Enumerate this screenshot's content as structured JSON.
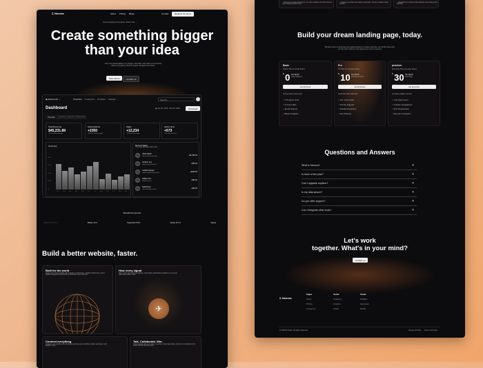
{
  "colors": {
    "background": "#f0b080",
    "page": "#0c0b0d",
    "accent": "#b8703a"
  },
  "left": {
    "nav": {
      "logo": "Nexora",
      "links": [
        "About",
        "Pricing",
        "Blogs"
      ],
      "contact": "Contact",
      "cta": "Request for demo"
    },
    "announcement": "Now accepting new projects. Read more →",
    "hero": {
      "line1": "Create something bigger",
      "line2": "than your idea",
      "subtitle": "All-in-one SaaS platform to manage, automate, and scale your business without complexity. Built for speed, designed for results.",
      "primary": "More About",
      "secondary": "Contact us"
    },
    "dashboard": {
      "team": "Alicia Koch",
      "nav": [
        "Overview",
        "Customers",
        "Products",
        "Settings"
      ],
      "search": "Search...",
      "title": "Dashboard",
      "date": "Jan 20, 2023 - Feb 09, 2023",
      "download": "Download",
      "tabs": [
        "Overview",
        "Analytics",
        "Reports",
        "Notifications"
      ],
      "stats": [
        {
          "label": "Total Revenue",
          "value": "$45,231.89",
          "note": "+20.1% from last month"
        },
        {
          "label": "Subscriptions",
          "value": "+2350",
          "note": "+180.1% from last month"
        },
        {
          "label": "Sales",
          "value": "+12,234",
          "note": "+19% from last month"
        },
        {
          "label": "Active Now",
          "value": "+573",
          "note": "+201 since last hour"
        }
      ],
      "overview_title": "Overview",
      "chart_data": {
        "type": "bar",
        "categories": [
          "Jan",
          "Feb",
          "Mar",
          "Apr",
          "May",
          "Jun",
          "Jul",
          "Aug",
          "Sep",
          "Oct",
          "Nov",
          "Dec"
        ],
        "values": [
          4820,
          3500,
          4140,
          2930,
          3390,
          4460,
          5210,
          2000,
          3040,
          1790,
          2430,
          2890
        ],
        "ylim": [
          0,
          6000
        ],
        "yticks": [
          "$0",
          "$1500",
          "$3000",
          "$4500",
          "$6000"
        ]
      },
      "recent": {
        "title": "Recent Sales",
        "subtitle": "You made 265 sales this month.",
        "items": [
          {
            "name": "Olivia Martin",
            "email": "olivia.martin@email.com",
            "amount": "+$1,999.00"
          },
          {
            "name": "Jackson Lee",
            "email": "jackson.lee@email.com",
            "amount": "+$39.00"
          },
          {
            "name": "Isabella Nguyen",
            "email": "isabella.nguyen@email.com",
            "amount": "+$299.00"
          },
          {
            "name": "William Kim",
            "email": "will@email.com",
            "amount": "+$99.00"
          },
          {
            "name": "Sofia Davis",
            "email": "sofia.davis@email.com",
            "amount": "+$39.00"
          }
        ]
      }
    },
    "tools": {
      "title": "Built with the best tools",
      "items": [
        "Tailwind CSS 4.0",
        "Motion 12.0",
        "Typescript 5.8.2",
        "Nextjs 15.3.1",
        "Figma"
      ]
    },
    "features": {
      "title": "Build a better website, faster.",
      "cards": [
        {
          "title": "Built for the world",
          "text": "Scale your product globally with seamless performance, reliable infrastructure, and a platform designed to grow with you wherever your users are."
        },
        {
          "title": "Hear every signal",
          "text": "Stay in sync with real-time updates, smart alerts, and instant feedback so you never miss what matters most."
        },
        {
          "title": "Connect everything",
          "text": "Integrate your favorite tools effortlessly and keep your workflow unified, automated, and always in sync."
        },
        {
          "title": "Talk. Collaborate. Win.",
          "text": "Communicate with your team in real time, share ideas faster, and turn conversations into action without switching tools."
        }
      ]
    }
  },
  "right": {
    "testimonials": [
      "...have been a game changer for our entire workflow. Our launches are now completely hassle-free.\"",
      "...support is excellent and always responsive. We feel confident using Nexora.\"",
      "...integrated our existing tools seamless. Everything works perfectly."
    ],
    "pricing": {
      "title": "Build your dream landing page, today.",
      "subtitle": "Whether you're a small team just getting started or a large enterprise, our flexible plans give you the tools, features, and support you need to succeed.",
      "plans": [
        {
          "name": "Basic",
          "desc": "Starter Plan for Small Teams",
          "price": "0",
          "period": "Per Month",
          "tag": "Core Features",
          "cta": "Get all access",
          "summary": "Access basic tools easily",
          "features": [
            "3 Projects Limit",
            "5 Users Max",
            "Email Support",
            "Basic Analytics"
          ]
        },
        {
          "name": "Pro",
          "desc": "Pro Plan for Growing Teams",
          "price": "10",
          "period": "Per Month",
          "tag": "Advanced Tools",
          "cta": "Get all access",
          "summary": "Automate tasks efficiently",
          "features": [
            "20+ Users Max",
            "Priority Support",
            "Detailed Analytics",
            "File Sharing"
          ]
        },
        {
          "name": "premium",
          "desc": "Enterprise Plan for Large Teams",
          "price": "30",
          "period": "Per Month",
          "tag": "Full Suite",
          "cta": "Get all access",
          "summary": "Complete platform access",
          "features": [
            "Unlimited Users",
            "Custom Integrations",
            "SLA Guarantees",
            "Premium Analytics"
          ]
        }
      ]
    },
    "faq": {
      "title": "Questions and Answers",
      "items": [
        "What is Nexora?",
        "Is there a free plan?",
        "Can I upgrade anytime?",
        "Is my data secure?",
        "Do you offer support?",
        "Can I integrate other tools?"
      ]
    },
    "cta": {
      "line1": "Let's work",
      "line2": "together. What's in your mind?",
      "button": "Contact us"
    },
    "footer": {
      "logo": "Nexora",
      "columns": [
        {
          "title": "Pages",
          "links": [
            "About",
            "Pricing",
            "Contact us"
          ]
        },
        {
          "title": "Social",
          "links": [
            "Instagram",
            "LinkedIn",
            "Twitter"
          ]
        },
        {
          "title": "Social",
          "links": [
            "Dribbble",
            "Facebook",
            "Reddit"
          ]
        }
      ],
      "copyright": "© 2025 M Tudio. All rights reserved.",
      "privacy": "Privacy & Policy",
      "terms": "Term of services"
    }
  }
}
